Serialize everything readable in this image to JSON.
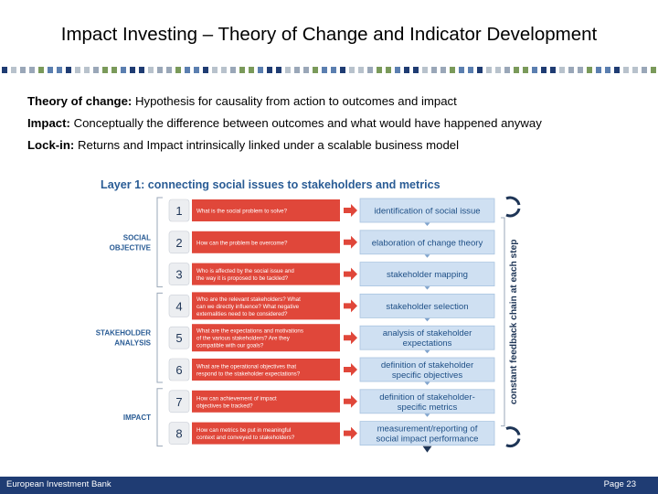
{
  "title": "Impact Investing – Theory of Change and Indicator Development",
  "bullets": [
    {
      "term": "Theory of change:",
      "text": " Hypothesis for causality from action to outcomes and impact"
    },
    {
      "term": "Impact:",
      "text": " Conceptually  the difference between outcomes and what would have happened anyway"
    },
    {
      "term": "Lock-in:",
      "text": " Returns and Impact intrinsically linked under a scalable business model"
    }
  ],
  "diagram": {
    "heading": "Layer 1:  connecting social issues to stakeholders and metrics",
    "side_label": "constant feedback chain at each step",
    "groups": [
      {
        "lines": [
          "SOCIAL",
          "OBJECTIVE"
        ]
      },
      {
        "lines": [
          "STAKEHOLDER",
          "ANALYSIS"
        ]
      },
      {
        "lines": [
          "IMPACT"
        ]
      }
    ],
    "steps": [
      {
        "num": "1",
        "question": [
          "What is the social problem to solve?"
        ],
        "result": [
          "identification of social issue"
        ]
      },
      {
        "num": "2",
        "question": [
          "How can the problem be overcome?"
        ],
        "result": [
          "elaboration of change theory"
        ]
      },
      {
        "num": "3",
        "question": [
          "Who is affected by the social issue and",
          "the way it is proposed to be tackled?"
        ],
        "result": [
          "stakeholder mapping"
        ]
      },
      {
        "num": "4",
        "question": [
          "Who are the relevant stakeholders? What",
          "can we directly influence? What negative",
          "externalities need to be considered?"
        ],
        "result": [
          "stakeholder selection"
        ]
      },
      {
        "num": "5",
        "question": [
          "What are the expectations and motivations",
          "of the various stakeholders? Are they",
          "compatible with our goals?"
        ],
        "result": [
          "analysis of stakeholder",
          "expectations"
        ]
      },
      {
        "num": "6",
        "question": [
          "What are the operational objectives that",
          "respond to the stakeholder expectations?"
        ],
        "result": [
          "definition of stakeholder",
          "specific objectives"
        ]
      },
      {
        "num": "7",
        "question": [
          "How can achievement of impact",
          "objectives be tracked?"
        ],
        "result": [
          "definition of stakeholder-",
          "specific metrics"
        ]
      },
      {
        "num": "8",
        "question": [
          "How can metrics be put in meaningful",
          "context and conveyed to stakeholders?"
        ],
        "result": [
          "measurement/reporting of",
          "social impact performance"
        ]
      }
    ]
  },
  "footer": {
    "left": "European Investment Bank",
    "right": "Page 23"
  },
  "colors": {
    "navy": "#1f3c73",
    "red": "#e0473a",
    "blue_box": "#cfe0f2",
    "blue_text": "#2a5c95",
    "blue_dark": "#1e4f86",
    "gray_box": "#eceef1"
  }
}
